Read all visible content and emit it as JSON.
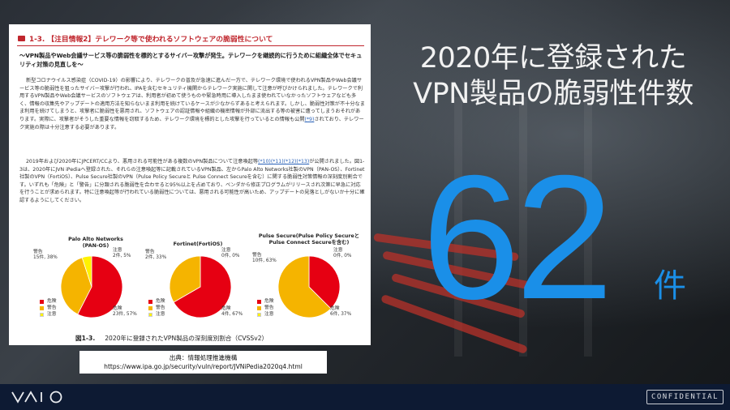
{
  "document": {
    "section_title": "1-3. 【注目情報2】テレワーク等で使われるソフトウェアの脆弱性について",
    "subtitle": "〜VPN製品やWeb会議サービス等の脆弱性を標的とするサイバー攻撃が発生。テレワークを継続的に行うために組織全体でセキュリティ対策の見直しを〜",
    "paragraph1": "新型コロナウイルス感染症（COVID-19）の影響により、テレワークの普及が急速に進んだ一方で、テレワーク環境で使われるVPN製品やWeb会議サービス等の脆弱性を狙ったサイバー攻撃が行われ、IPAを含むセキュリティ機関からテレワーク実施に関して注意が呼びかけられました。テレワークで利用するVPN製品やWeb会議サービスのソフトウェアは、利用者が初めて使うものや緊急時用に導入したまま使われていなかったソフトウェアなども多く、情報の収集先やアップデートの適用方法を知らないまま利用を続けているケースが少なからずあると考えられます。しかし、脆弱性対策が不十分なまま利用を続けてしまうと、攻撃者に脆弱性を悪用され、ソフトウェアの認証情報や組織の機密情報が外部に流出する等の被害に遭ってしまうおそれがあります。実際に、攻撃者がそうした重要な情報を窃取するため、テレワーク環境を標的とした攻撃を行っているとの情報も公開",
    "paragraph1_ref": "(*9)",
    "paragraph1_end": "されており、テレワーク実施の際は十分注意する必要があります。",
    "paragraph2_a": "2019年および2020年にJPCERT/CCより、悪用される可能性がある複数のVPN製品について注意喚起等",
    "paragraph2_refs": "(*10)(*11)(*12)(*13)",
    "paragraph2_b": "が公開されました。図1-3は、2020年にJVN iPediaへ登録された、それらの注意喚起等に記載されているVPN製品、左からPalo Alto Networks社製のVPN（PAN-OS）、Fortinet社製のVPN（FortiOS）、Pulse Secure社製のVPN（Pulse Policy Secureと Pulse Connect Secureを含む）に関する脆弱性対策情報の深刻度別割合です。いずれも「危険」と「警告」に分類される脆弱性を合わせると95%以上を占めており、ベンダから修正プログラムがリリースされ次第に早急に対応を行うことが求められます。特に注意喚起等が行われている脆弱性については、悪用される可能性が高いため、アップデートの見落としがないか十分に確認するようにしてください。",
    "figure_caption_number": "図1-3.",
    "figure_caption": "2020年に登録されたVPN製品の深刻度別割合（CVSSv2）",
    "legend": [
      "危険",
      "警告",
      "注意"
    ]
  },
  "chart_data": [
    {
      "type": "pie",
      "title": "Palo Alto Networks\n(PAN-OS)",
      "slices": [
        {
          "label": "危険",
          "value": 23,
          "percent": "57%",
          "color": "#e60012"
        },
        {
          "label": "警告",
          "value": 15,
          "percent": "38%",
          "color": "#f5b400"
        },
        {
          "label": "注意",
          "value": 2,
          "percent": "5%",
          "color": "#fff200"
        }
      ]
    },
    {
      "type": "pie",
      "title": "Fortinet(FortiOS)",
      "slices": [
        {
          "label": "危険",
          "value": 4,
          "percent": "67%",
          "color": "#e60012"
        },
        {
          "label": "警告",
          "value": 2,
          "percent": "33%",
          "color": "#f5b400"
        },
        {
          "label": "注意",
          "value": 0,
          "percent": "0%",
          "color": "#fff200"
        }
      ]
    },
    {
      "type": "pie",
      "title": "Pulse Secure(Pulse Policy Secureと\nPulse Connect Secureを含む)",
      "slices": [
        {
          "label": "危険",
          "value": 6,
          "percent": "37%",
          "color": "#e60012"
        },
        {
          "label": "警告",
          "value": 10,
          "percent": "63%",
          "color": "#f5b400"
        },
        {
          "label": "注意",
          "value": 0,
          "percent": "0%",
          "color": "#fff200"
        }
      ]
    }
  ],
  "source": {
    "line1": "出典：情報処理推進機構",
    "line2": "https://www.ipa.go.jp/security/vuln/report/JVNiPedia2020q4.html"
  },
  "headline": {
    "line1": "2020年に登録された",
    "line2": "VPN製品の脆弱性件数",
    "count": "62",
    "unit": "件"
  },
  "footer": {
    "logo": "VAIO",
    "badge": "CONFIDENTIAL"
  }
}
